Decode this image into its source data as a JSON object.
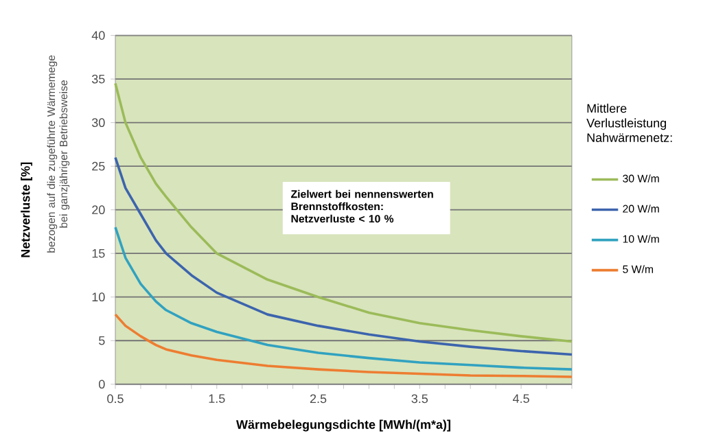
{
  "chart_data": {
    "type": "line",
    "xlabel": "Wärmebelegungsdichte [MWh/(m*a)]",
    "ylabel": "Netzverluste [%]",
    "legend_title": "Mittlere Verlustleistung Nahwärmenetz:",
    "annotations": [
      "Zielwert bei nennenswerten Brennstoffkosten: Netzverluste < 10 %",
      "bezogen auf die zugeführte Wärmemege bei ganzjähriger Betriebsweise"
    ],
    "x": [
      0.5,
      0.6,
      0.75,
      0.9,
      1.0,
      1.25,
      1.5,
      2.0,
      2.5,
      3.0,
      3.5,
      4.0,
      4.5,
      5.0
    ],
    "series": [
      {
        "name": "30 W/m",
        "color": "#9bbb59",
        "values": [
          34.5,
          30,
          26,
          23,
          21.5,
          18,
          15,
          12,
          10,
          8.2,
          7,
          6.2,
          5.5,
          4.9
        ]
      },
      {
        "name": "20 W/m",
        "color": "#3c64ad",
        "values": [
          26,
          22.5,
          19.5,
          16.5,
          15,
          12.5,
          10.5,
          8,
          6.7,
          5.7,
          4.9,
          4.3,
          3.8,
          3.4
        ]
      },
      {
        "name": "10 W/m",
        "color": "#31a2c0",
        "values": [
          18,
          14.5,
          11.5,
          9.5,
          8.5,
          7,
          6,
          4.5,
          3.6,
          3,
          2.5,
          2.2,
          1.9,
          1.7
        ]
      },
      {
        "name": "5 W/m",
        "color": "#ed7d31",
        "values": [
          8,
          6.7,
          5.5,
          4.5,
          4,
          3.3,
          2.8,
          2.1,
          1.7,
          1.4,
          1.2,
          1,
          0.95,
          0.85
        ]
      }
    ],
    "xlim": [
      0.5,
      5
    ],
    "xticks": [
      0.5,
      {
        "value": 0.75,
        "label": null
      },
      {
        "value": 1.0,
        "label": null
      },
      {
        "value": 1.25,
        "label": null
      },
      1.5,
      {
        "value": 1.75,
        "label": null
      },
      {
        "value": 2.0,
        "label": null
      },
      {
        "value": 2.25,
        "label": null
      },
      2.5,
      {
        "value": 2.75,
        "label": null
      },
      {
        "value": 3.0,
        "label": null
      },
      {
        "value": 3.25,
        "label": null
      },
      3.5,
      {
        "value": 3.75,
        "label": null
      },
      {
        "value": 4.0,
        "label": null
      },
      {
        "value": 4.25,
        "label": null
      },
      4.5,
      {
        "value": 4.75,
        "label": null
      },
      {
        "value": 5.0,
        "label": null
      }
    ],
    "ylim": [
      0,
      40
    ],
    "yticks": [
      0,
      5,
      10,
      15,
      20,
      25,
      30,
      35,
      40
    ],
    "grid": "y",
    "legend": "right",
    "marker": "none",
    "line_style": "solid"
  }
}
